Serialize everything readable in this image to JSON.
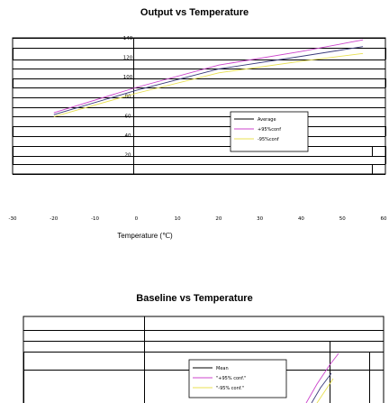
{
  "chart_data": [
    {
      "type": "line",
      "title": "Output vs Temperature",
      "xlabel": "Temperature (℃)",
      "ylabel": "",
      "x_ticks": [
        "-30",
        "-20",
        "-10",
        "0",
        "10",
        "20",
        "30",
        "40",
        "50",
        "60"
      ],
      "y_ticks": [
        "140",
        "120",
        "100",
        "80",
        "60",
        "40",
        "20"
      ],
      "xlim": [
        -30,
        60
      ],
      "ylim": [
        0,
        140
      ],
      "legend_position": "center-right",
      "series": [
        {
          "name": "Average",
          "color": "#3a3a7a",
          "x": [
            -20,
            0,
            20,
            40,
            55
          ],
          "y": [
            61,
            86,
            108,
            121,
            131
          ]
        },
        {
          "name": "+95%conf",
          "color": "#cc44cc",
          "x": [
            -20,
            0,
            20,
            40,
            55
          ],
          "y": [
            63,
            89,
            112,
            126,
            138
          ]
        },
        {
          "name": "-95%conf",
          "color": "#e8e050",
          "x": [
            -20,
            0,
            20,
            40,
            55
          ],
          "y": [
            59,
            83,
            104,
            116,
            124
          ]
        }
      ]
    },
    {
      "type": "line",
      "title": "Baseline vs Temperature",
      "legend_position": "center",
      "series": [
        {
          "name": "Mean",
          "color": "#3a3a7a"
        },
        {
          "name": "\"+95% conf.\"",
          "color": "#cc44cc"
        },
        {
          "name": "\"-95% conf.\"",
          "color": "#e8e050"
        }
      ]
    }
  ]
}
